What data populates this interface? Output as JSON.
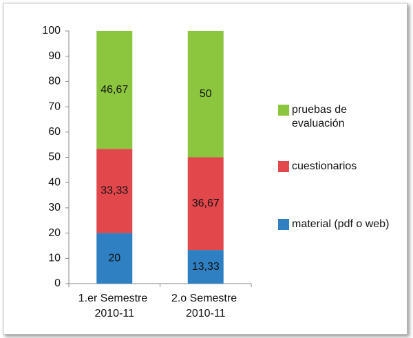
{
  "chart_data": {
    "type": "stacked-bar",
    "categories": [
      "1.er Semestre 2010-11",
      "2.o Semestre 2010-11"
    ],
    "series": [
      {
        "name": "material (pdf o web)",
        "color": "#2f80c3",
        "values": [
          20,
          13.33
        ],
        "value_labels": [
          "20",
          "13,33"
        ]
      },
      {
        "name": "cuestionarios",
        "color": "#e2474c",
        "values": [
          33.33,
          36.67
        ],
        "value_labels": [
          "33,33",
          "36,67"
        ]
      },
      {
        "name": "pruebas de evaluación",
        "color": "#8cc63f",
        "values": [
          46.67,
          50
        ],
        "value_labels": [
          "46,67",
          "50"
        ]
      }
    ],
    "ylim": [
      0,
      100
    ],
    "yticks": [
      0,
      10,
      20,
      30,
      40,
      50,
      60,
      70,
      80,
      90,
      100
    ],
    "grid": false,
    "legend": "right"
  }
}
